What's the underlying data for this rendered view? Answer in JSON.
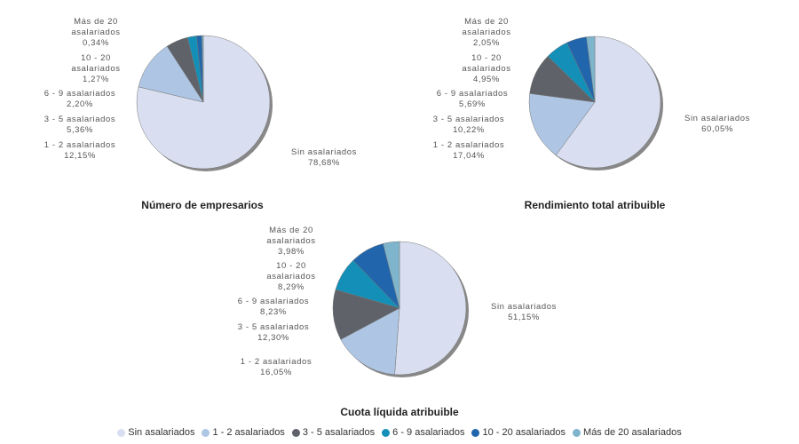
{
  "colors": [
    "#d9dff0",
    "#aec6e4",
    "#5f6369",
    "#1490b8",
    "#2166ac",
    "#7fb5cc"
  ],
  "chart_data": [
    {
      "type": "pie",
      "title": "Número de empresarios",
      "categories": [
        "Sin asalariados",
        "1 - 2 asalariados",
        "3 - 5 asalariados",
        "6 - 9 asalariados",
        "10 - 20 asalariados",
        "Más de 20 asalariados"
      ],
      "values": [
        78.68,
        12.15,
        5.36,
        2.2,
        1.27,
        0.34
      ],
      "labels": [
        "78,68%",
        "12,15%",
        "5,36%",
        "2,20%",
        "1,27%",
        "0,34%"
      ]
    },
    {
      "type": "pie",
      "title": "Rendimiento total atribuible",
      "categories": [
        "Sin asalariados",
        "1 - 2 asalariados",
        "3 - 5 asalariados",
        "6 - 9 asalariados",
        "10 - 20 asalariados",
        "Más de 20 asalariados"
      ],
      "values": [
        60.05,
        17.04,
        10.22,
        5.69,
        4.95,
        2.05
      ],
      "labels": [
        "60,05%",
        "17,04%",
        "10,22%",
        "5,69%",
        "4,95%",
        "2,05%"
      ]
    },
    {
      "type": "pie",
      "title": "Cuota líquida atribuible",
      "categories": [
        "Sin asalariados",
        "1 - 2 asalariados",
        "3 - 5 asalariados",
        "6 - 9 asalariados",
        "10 - 20 asalariados",
        "Más de 20 asalariados"
      ],
      "values": [
        51.15,
        16.05,
        12.3,
        8.23,
        8.29,
        3.98
      ],
      "labels": [
        "51,15%",
        "16,05%",
        "12,30%",
        "8,23%",
        "8,29%",
        "3,98%"
      ]
    }
  ],
  "legend": {
    "placement": "bottom",
    "items": [
      "Sin asalariados",
      "1 - 2 asalariados",
      "3 - 5 asalariados",
      "6 - 9 asalariados",
      "10 - 20 asalariados",
      "Más de 20 asalariados"
    ]
  }
}
